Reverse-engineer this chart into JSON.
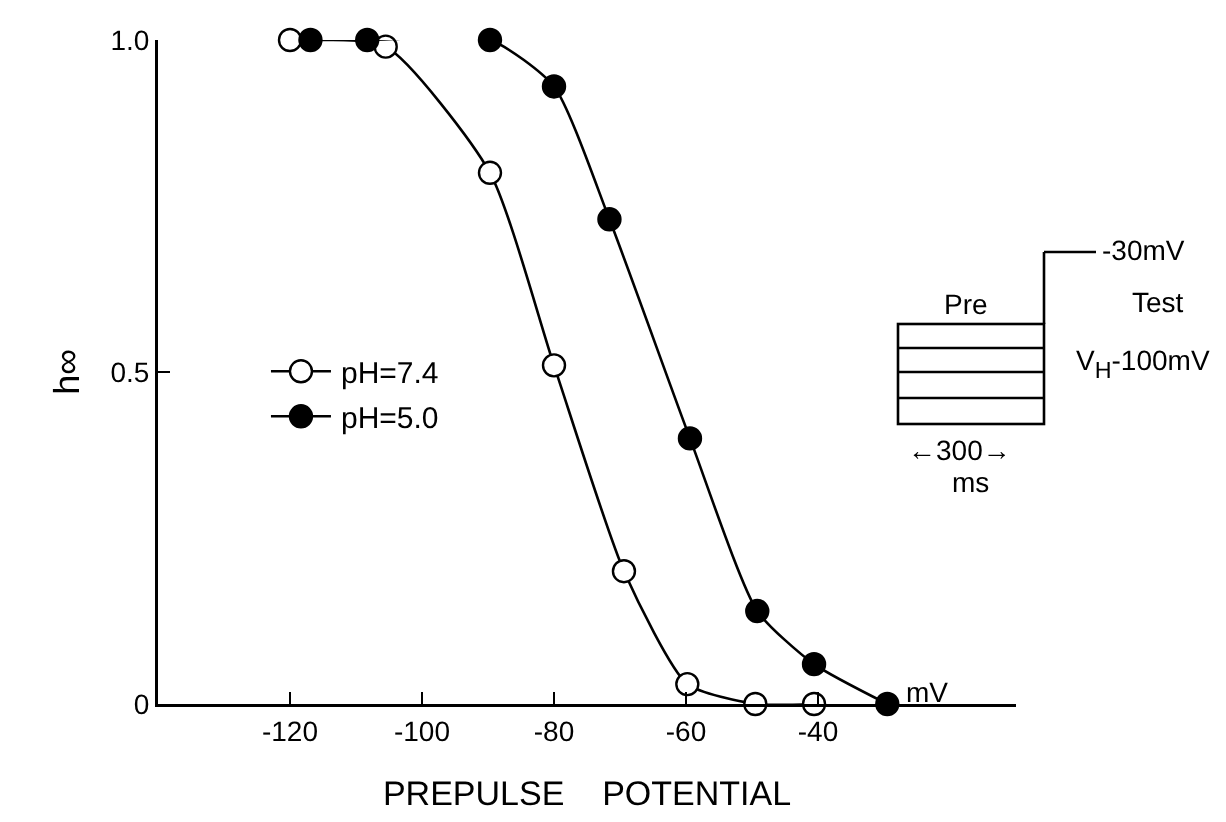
{
  "chart_data": {
    "type": "line",
    "xlabel": "PREPULSE    POTENTIAL",
    "ylabel": "h∞",
    "xlim": [
      -140,
      -10
    ],
    "xticks": [
      -120,
      -100,
      -80,
      -60,
      -40
    ],
    "ylim": [
      0,
      1
    ],
    "yticks": [
      0,
      {
        "value": 0.5,
        "label": "0.5"
      },
      {
        "value": 1,
        "label": "1.0"
      }
    ],
    "grid": false,
    "legend": "left",
    "marker": "circle",
    "line_style": "solid",
    "series": [
      {
        "name": "pH=7.4",
        "color": "#ffffff",
        "x": [
          -120,
          -105.5,
          -89.7,
          -80,
          -69.4,
          -59.8,
          -49.5,
          -40.6
        ],
        "values": [
          1.0,
          0.99,
          0.8,
          0.51,
          0.2,
          0.03,
          0,
          0
        ]
      },
      {
        "name": "pH=5.0",
        "color": "#000000",
        "x": [
          -116.9,
          -108.3,
          -89.7,
          -80,
          -71.6,
          -59.4,
          -49.2,
          -40.6,
          -29.5
        ],
        "values": [
          1.0,
          1.0,
          1.0,
          0.93,
          0.73,
          0.4,
          0.14,
          0.06,
          0
        ]
      }
    ],
    "annotations": [
      "mV",
      "-30mV",
      "Test",
      "Pre",
      "V$_{H}$-100mV",
      "←300→",
      "ms"
    ]
  }
}
